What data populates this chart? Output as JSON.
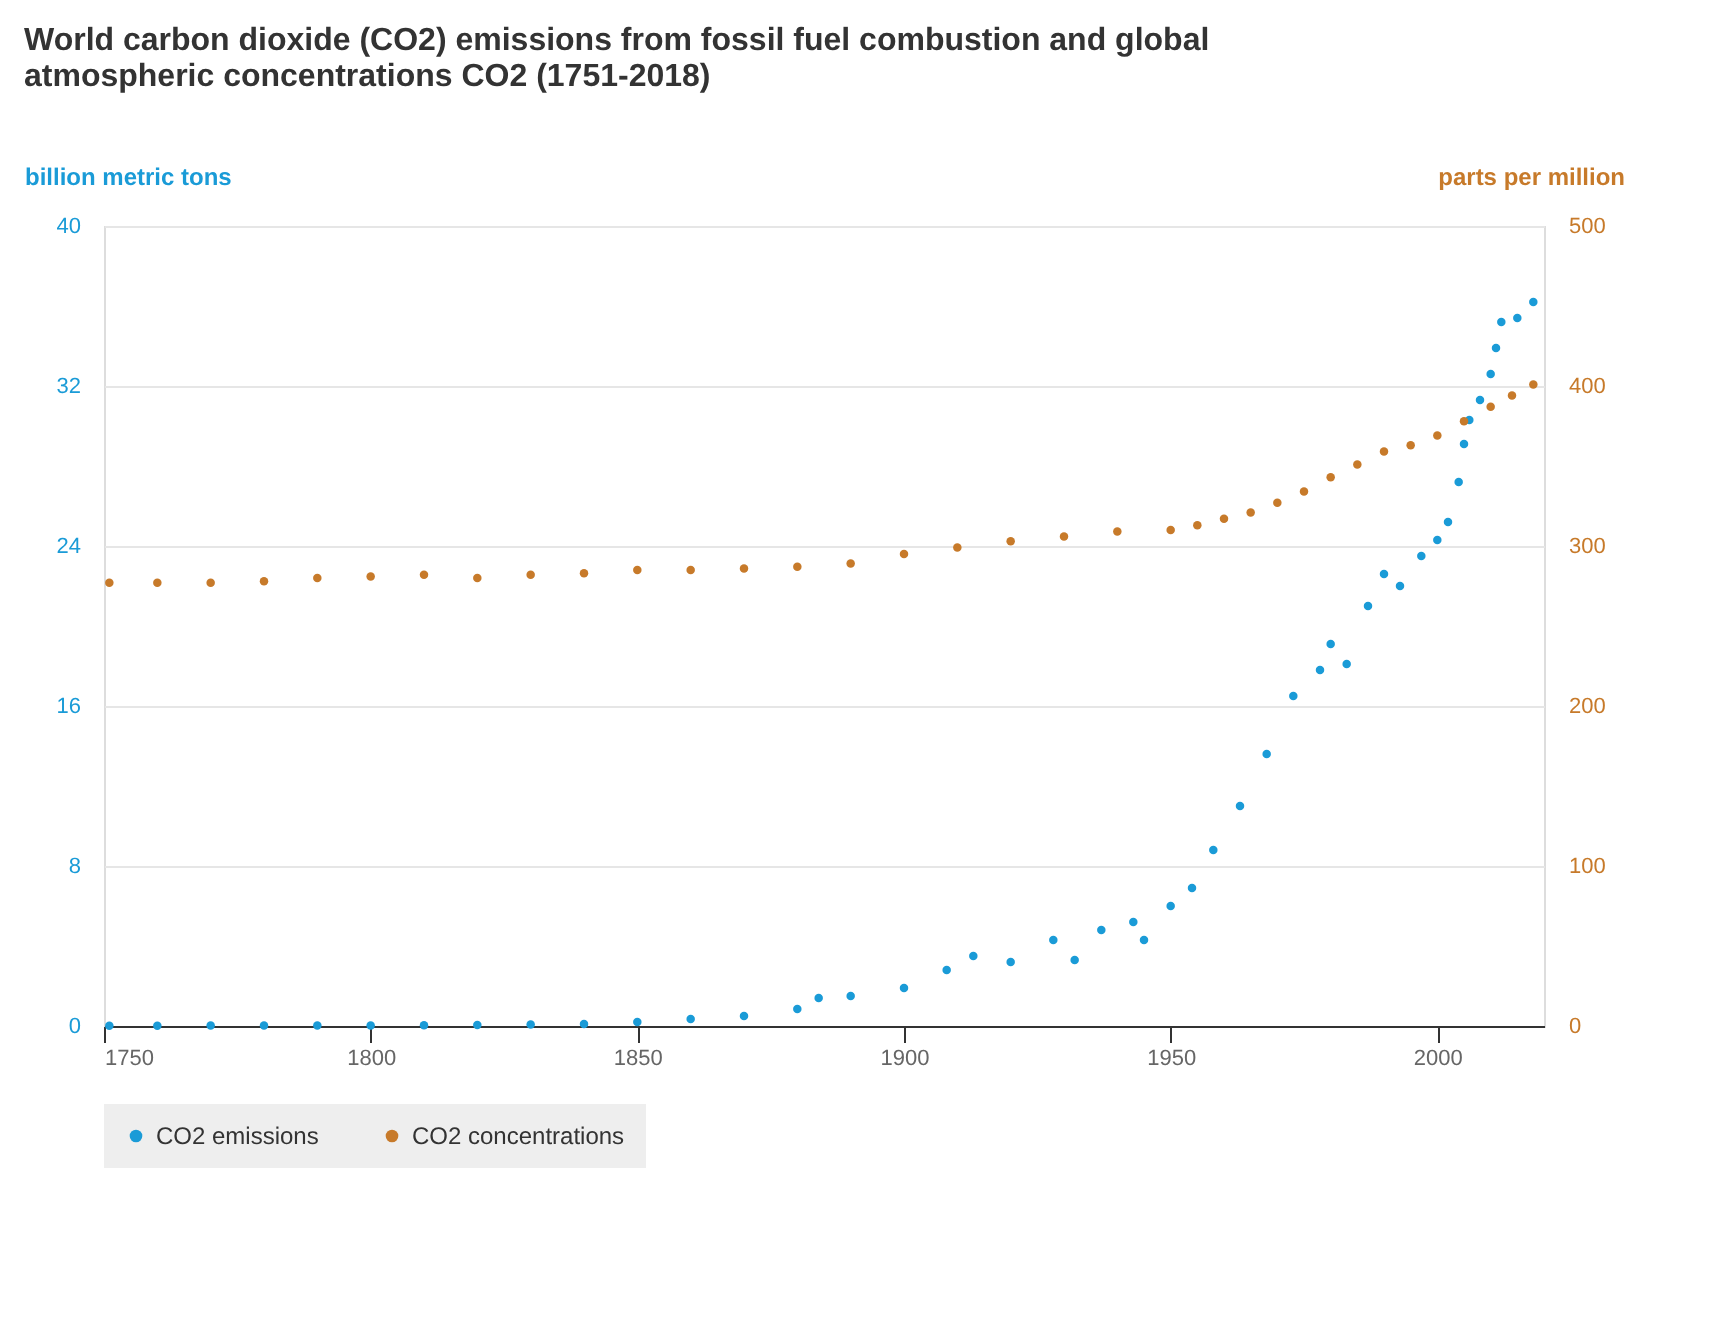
{
  "chart_data": {
    "type": "scatter",
    "title": "World carbon dioxide (CO2) emissions from fossil fuel combustion and global atmospheric concentrations CO2 (1751-2018)",
    "ylabel": "billion metric tons",
    "y2label": "parts per million",
    "xlim": [
      1750,
      2020
    ],
    "xticks": [
      1750,
      1800,
      1850,
      1900,
      1950,
      2000
    ],
    "ylim": [
      0,
      40
    ],
    "yticks": [
      0,
      8,
      16,
      24,
      32,
      40
    ],
    "y2lim": [
      0,
      500
    ],
    "y2ticks": [
      0,
      100,
      200,
      300,
      400,
      500
    ],
    "grid": "y",
    "legend": "bottom",
    "marker": "circle",
    "series": [
      {
        "name": "CO2 emissions",
        "color": "#1a9bd7",
        "x": [
          1751,
          1760,
          1770,
          1780,
          1790,
          1800,
          1810,
          1820,
          1830,
          1840,
          1850,
          1860,
          1870,
          1880,
          1884,
          1890,
          1900,
          1908,
          1913,
          1920,
          1928,
          1932,
          1937,
          1943,
          1945,
          1950,
          1954,
          1958,
          1963,
          1968,
          1973,
          1978,
          1980,
          1983,
          1987,
          1990,
          1993,
          1997,
          2000,
          2002,
          2004,
          2005,
          2006,
          2008,
          2010,
          2011,
          2012,
          2015,
          2018
        ],
        "values": [
          0.01,
          0.01,
          0.02,
          0.02,
          0.03,
          0.03,
          0.04,
          0.05,
          0.07,
          0.1,
          0.2,
          0.35,
          0.5,
          0.85,
          1.4,
          1.5,
          1.9,
          2.8,
          3.5,
          3.2,
          4.3,
          3.3,
          4.8,
          5.2,
          4.3,
          6.0,
          6.9,
          8.8,
          11.0,
          13.6,
          16.5,
          17.8,
          19.1,
          18.1,
          21.0,
          22.6,
          22.0,
          23.5,
          24.3,
          25.2,
          27.2,
          29.1,
          30.3,
          31.3,
          32.6,
          33.9,
          35.2,
          35.4,
          36.2
        ]
      },
      {
        "name": "CO2 concentrations",
        "color": "#c77a2a",
        "axis": "y2",
        "x": [
          1751,
          1760,
          1770,
          1780,
          1790,
          1800,
          1810,
          1820,
          1830,
          1840,
          1850,
          1860,
          1870,
          1880,
          1890,
          1900,
          1910,
          1920,
          1930,
          1940,
          1950,
          1955,
          1960,
          1965,
          1970,
          1975,
          1980,
          1985,
          1990,
          1995,
          2000,
          2005,
          2010,
          2014,
          2018
        ],
        "values": [
          277,
          277,
          277,
          278,
          280,
          281,
          282,
          280,
          282,
          283,
          285,
          285,
          286,
          287,
          289,
          295,
          299,
          303,
          306,
          309,
          310,
          313,
          317,
          321,
          327,
          334,
          343,
          351,
          359,
          363,
          369,
          378,
          387,
          394,
          401
        ]
      }
    ]
  }
}
